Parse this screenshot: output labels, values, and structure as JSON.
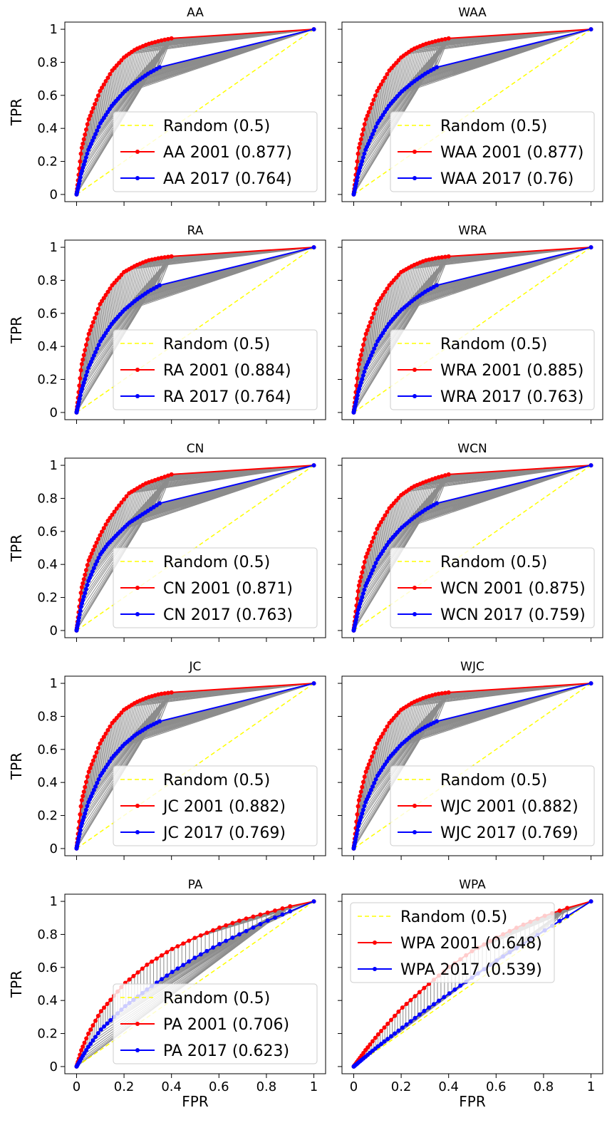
{
  "chart_data": [
    {
      "type": "line",
      "title": "AA",
      "xlabel": "",
      "ylabel": "TPR",
      "xlim": [
        0,
        1
      ],
      "ylim": [
        0,
        1
      ],
      "xticks": [
        "0",
        "0.2",
        "0.4",
        "0.6",
        "0.8",
        "1"
      ],
      "yticks": [
        "0",
        "0.2",
        "0.4",
        "0.6",
        "0.8",
        "1"
      ],
      "show_xticklabels": false,
      "legend_position": "lower right",
      "grid": false,
      "series": [
        {
          "name": "Random (0.5)",
          "auc": 0.5,
          "style": "dashed",
          "color": "#ffff00"
        },
        {
          "name": "AA 2001 (0.877)",
          "auc": 0.877,
          "color": "#ff0000",
          "x": [
            0,
            0.02,
            0.05,
            0.1,
            0.15,
            0.2,
            0.25,
            0.3,
            0.35,
            0.4,
            1
          ],
          "y": [
            0,
            0.27,
            0.45,
            0.63,
            0.75,
            0.83,
            0.88,
            0.91,
            0.93,
            0.945,
            1
          ]
        },
        {
          "name": "AA 2017 (0.764)",
          "auc": 0.764,
          "color": "#0000ff",
          "x": [
            0,
            0.02,
            0.05,
            0.1,
            0.15,
            0.2,
            0.25,
            0.3,
            0.35,
            1
          ],
          "y": [
            0,
            0.13,
            0.27,
            0.43,
            0.54,
            0.62,
            0.68,
            0.73,
            0.77,
            1
          ]
        }
      ]
    },
    {
      "type": "line",
      "title": "WAA",
      "xlabel": "",
      "ylabel": "",
      "xlim": [
        0,
        1
      ],
      "ylim": [
        0,
        1
      ],
      "xticks": [
        "0",
        "0.2",
        "0.4",
        "0.6",
        "0.8",
        "1"
      ],
      "yticks": [
        "0",
        "0.2",
        "0.4",
        "0.6",
        "0.8",
        "1"
      ],
      "show_xticklabels": false,
      "legend_position": "lower right",
      "grid": false,
      "series": [
        {
          "name": "Random (0.5)",
          "auc": 0.5,
          "style": "dashed",
          "color": "#ffff00"
        },
        {
          "name": "WAA 2001 (0.877)",
          "auc": 0.877,
          "color": "#ff0000",
          "x": [
            0,
            0.02,
            0.05,
            0.1,
            0.15,
            0.2,
            0.25,
            0.3,
            0.35,
            0.4,
            1
          ],
          "y": [
            0,
            0.27,
            0.45,
            0.63,
            0.75,
            0.83,
            0.88,
            0.91,
            0.93,
            0.945,
            1
          ]
        },
        {
          "name": "WAA 2017 (0.76)",
          "auc": 0.76,
          "color": "#0000ff",
          "x": [
            0,
            0.02,
            0.05,
            0.1,
            0.15,
            0.2,
            0.25,
            0.3,
            0.35,
            1
          ],
          "y": [
            0,
            0.13,
            0.27,
            0.43,
            0.54,
            0.62,
            0.68,
            0.73,
            0.77,
            1
          ]
        }
      ]
    },
    {
      "type": "line",
      "title": "RA",
      "xlabel": "",
      "ylabel": "TPR",
      "xlim": [
        0,
        1
      ],
      "ylim": [
        0,
        1
      ],
      "xticks": [
        "0",
        "0.2",
        "0.4",
        "0.6",
        "0.8",
        "1"
      ],
      "yticks": [
        "0",
        "0.2",
        "0.4",
        "0.6",
        "0.8",
        "1"
      ],
      "show_xticklabels": false,
      "legend_position": "lower right",
      "grid": false,
      "series": [
        {
          "name": "Random (0.5)",
          "auc": 0.5,
          "style": "dashed",
          "color": "#ffff00"
        },
        {
          "name": "RA 2001 (0.884)",
          "auc": 0.884,
          "color": "#ff0000",
          "x": [
            0,
            0.02,
            0.05,
            0.1,
            0.15,
            0.2,
            0.25,
            0.3,
            0.35,
            0.4,
            1
          ],
          "y": [
            0,
            0.28,
            0.47,
            0.66,
            0.77,
            0.85,
            0.89,
            0.92,
            0.935,
            0.945,
            1
          ]
        },
        {
          "name": "RA 2017 (0.764)",
          "auc": 0.764,
          "color": "#0000ff",
          "x": [
            0,
            0.02,
            0.05,
            0.1,
            0.15,
            0.2,
            0.25,
            0.3,
            0.35,
            1
          ],
          "y": [
            0,
            0.13,
            0.27,
            0.43,
            0.54,
            0.62,
            0.68,
            0.73,
            0.77,
            1
          ]
        }
      ]
    },
    {
      "type": "line",
      "title": "WRA",
      "xlabel": "",
      "ylabel": "",
      "xlim": [
        0,
        1
      ],
      "ylim": [
        0,
        1
      ],
      "xticks": [
        "0",
        "0.2",
        "0.4",
        "0.6",
        "0.8",
        "1"
      ],
      "yticks": [
        "0",
        "0.2",
        "0.4",
        "0.6",
        "0.8",
        "1"
      ],
      "show_xticklabels": false,
      "legend_position": "lower right",
      "grid": false,
      "series": [
        {
          "name": "Random (0.5)",
          "auc": 0.5,
          "style": "dashed",
          "color": "#ffff00"
        },
        {
          "name": "WRA 2001 (0.885)",
          "auc": 0.885,
          "color": "#ff0000",
          "x": [
            0,
            0.02,
            0.05,
            0.1,
            0.15,
            0.2,
            0.25,
            0.3,
            0.35,
            0.4,
            1
          ],
          "y": [
            0,
            0.28,
            0.47,
            0.66,
            0.77,
            0.85,
            0.89,
            0.92,
            0.935,
            0.945,
            1
          ]
        },
        {
          "name": "WRA 2017 (0.763)",
          "auc": 0.763,
          "color": "#0000ff",
          "x": [
            0,
            0.02,
            0.05,
            0.1,
            0.15,
            0.2,
            0.25,
            0.3,
            0.35,
            1
          ],
          "y": [
            0,
            0.13,
            0.27,
            0.43,
            0.54,
            0.62,
            0.68,
            0.73,
            0.77,
            1
          ]
        }
      ]
    },
    {
      "type": "line",
      "title": "CN",
      "xlabel": "",
      "ylabel": "TPR",
      "xlim": [
        0,
        1
      ],
      "ylim": [
        0,
        1
      ],
      "xticks": [
        "0",
        "0.2",
        "0.4",
        "0.6",
        "0.8",
        "1"
      ],
      "yticks": [
        "0",
        "0.2",
        "0.4",
        "0.6",
        "0.8",
        "1"
      ],
      "show_xticklabels": false,
      "legend_position": "lower right",
      "grid": false,
      "series": [
        {
          "name": "Random (0.5)",
          "auc": 0.5,
          "style": "dashed",
          "color": "#ffff00"
        },
        {
          "name": "CN 2001 (0.871)",
          "auc": 0.871,
          "color": "#ff0000",
          "x": [
            0,
            0.02,
            0.05,
            0.08,
            0.1,
            0.13,
            0.17,
            0.22,
            0.29,
            0.4,
            1
          ],
          "y": [
            0,
            0.25,
            0.42,
            0.52,
            0.58,
            0.66,
            0.74,
            0.83,
            0.89,
            0.945,
            1
          ]
        },
        {
          "name": "CN 2017 (0.763)",
          "auc": 0.763,
          "color": "#0000ff",
          "x": [
            0,
            0.02,
            0.05,
            0.08,
            0.1,
            0.13,
            0.17,
            0.22,
            0.35,
            1
          ],
          "y": [
            0,
            0.15,
            0.3,
            0.4,
            0.46,
            0.52,
            0.58,
            0.65,
            0.77,
            1
          ]
        }
      ]
    },
    {
      "type": "line",
      "title": "WCN",
      "xlabel": "",
      "ylabel": "",
      "xlim": [
        0,
        1
      ],
      "ylim": [
        0,
        1
      ],
      "xticks": [
        "0",
        "0.2",
        "0.4",
        "0.6",
        "0.8",
        "1"
      ],
      "yticks": [
        "0",
        "0.2",
        "0.4",
        "0.6",
        "0.8",
        "1"
      ],
      "show_xticklabels": false,
      "legend_position": "lower right",
      "grid": false,
      "series": [
        {
          "name": "Random (0.5)",
          "auc": 0.5,
          "style": "dashed",
          "color": "#ffff00"
        },
        {
          "name": "WCN 2001 (0.875)",
          "auc": 0.875,
          "color": "#ff0000",
          "x": [
            0,
            0.02,
            0.05,
            0.1,
            0.15,
            0.2,
            0.25,
            0.3,
            0.35,
            0.4,
            1
          ],
          "y": [
            0,
            0.26,
            0.44,
            0.62,
            0.74,
            0.82,
            0.87,
            0.9,
            0.925,
            0.945,
            1
          ]
        },
        {
          "name": "WCN 2017 (0.759)",
          "auc": 0.759,
          "color": "#0000ff",
          "x": [
            0,
            0.02,
            0.05,
            0.1,
            0.15,
            0.2,
            0.25,
            0.3,
            0.35,
            1
          ],
          "y": [
            0,
            0.13,
            0.27,
            0.43,
            0.54,
            0.62,
            0.68,
            0.73,
            0.77,
            1
          ]
        }
      ]
    },
    {
      "type": "line",
      "title": "JC",
      "xlabel": "",
      "ylabel": "TPR",
      "xlim": [
        0,
        1
      ],
      "ylim": [
        0,
        1
      ],
      "xticks": [
        "0",
        "0.2",
        "0.4",
        "0.6",
        "0.8",
        "1"
      ],
      "yticks": [
        "0",
        "0.2",
        "0.4",
        "0.6",
        "0.8",
        "1"
      ],
      "show_xticklabels": false,
      "legend_position": "lower right",
      "grid": false,
      "series": [
        {
          "name": "Random (0.5)",
          "auc": 0.5,
          "style": "dashed",
          "color": "#ffff00"
        },
        {
          "name": "JC 2001 (0.882)",
          "auc": 0.882,
          "color": "#ff0000",
          "x": [
            0,
            0.02,
            0.05,
            0.1,
            0.15,
            0.2,
            0.25,
            0.3,
            0.35,
            0.4,
            1
          ],
          "y": [
            0,
            0.28,
            0.46,
            0.64,
            0.76,
            0.84,
            0.885,
            0.915,
            0.935,
            0.945,
            1
          ]
        },
        {
          "name": "JC 2017 (0.769)",
          "auc": 0.769,
          "color": "#0000ff",
          "x": [
            0,
            0.02,
            0.05,
            0.1,
            0.15,
            0.2,
            0.25,
            0.3,
            0.35,
            1
          ],
          "y": [
            0,
            0.14,
            0.28,
            0.44,
            0.55,
            0.63,
            0.69,
            0.735,
            0.77,
            1
          ]
        }
      ]
    },
    {
      "type": "line",
      "title": "WJC",
      "xlabel": "",
      "ylabel": "",
      "xlim": [
        0,
        1
      ],
      "ylim": [
        0,
        1
      ],
      "xticks": [
        "0",
        "0.2",
        "0.4",
        "0.6",
        "0.8",
        "1"
      ],
      "yticks": [
        "0",
        "0.2",
        "0.4",
        "0.6",
        "0.8",
        "1"
      ],
      "show_xticklabels": false,
      "legend_position": "lower right",
      "grid": false,
      "series": [
        {
          "name": "Random (0.5)",
          "auc": 0.5,
          "style": "dashed",
          "color": "#ffff00"
        },
        {
          "name": "WJC 2001 (0.882)",
          "auc": 0.882,
          "color": "#ff0000",
          "x": [
            0,
            0.02,
            0.05,
            0.1,
            0.15,
            0.2,
            0.25,
            0.3,
            0.35,
            0.4,
            1
          ],
          "y": [
            0,
            0.28,
            0.46,
            0.64,
            0.76,
            0.84,
            0.885,
            0.915,
            0.935,
            0.945,
            1
          ]
        },
        {
          "name": "WJC 2017 (0.769)",
          "auc": 0.769,
          "color": "#0000ff",
          "x": [
            0,
            0.02,
            0.05,
            0.1,
            0.15,
            0.2,
            0.25,
            0.3,
            0.35,
            1
          ],
          "y": [
            0,
            0.14,
            0.28,
            0.44,
            0.55,
            0.63,
            0.69,
            0.735,
            0.77,
            1
          ]
        }
      ]
    },
    {
      "type": "line",
      "title": "PA",
      "xlabel": "FPR",
      "ylabel": "TPR",
      "xlim": [
        0,
        1
      ],
      "ylim": [
        0,
        1
      ],
      "xticks": [
        "0",
        "0.2",
        "0.4",
        "0.6",
        "0.8",
        "1"
      ],
      "yticks": [
        "0",
        "0.2",
        "0.4",
        "0.6",
        "0.8",
        "1"
      ],
      "show_xticklabels": true,
      "legend_position": "lower right",
      "grid": false,
      "series": [
        {
          "name": "Random (0.5)",
          "auc": 0.5,
          "style": "dashed",
          "color": "#ffff00"
        },
        {
          "name": "PA 2001 (0.706)",
          "auc": 0.706,
          "color": "#ff0000",
          "x": [
            0,
            0.02,
            0.05,
            0.1,
            0.2,
            0.3,
            0.4,
            0.5,
            0.6,
            0.7,
            0.8,
            0.9,
            1
          ],
          "y": [
            0,
            0.1,
            0.2,
            0.33,
            0.5,
            0.62,
            0.71,
            0.78,
            0.84,
            0.89,
            0.93,
            0.97,
            1
          ]
        },
        {
          "name": "PA 2017 (0.623)",
          "auc": 0.623,
          "color": "#0000ff",
          "x": [
            0,
            0.02,
            0.05,
            0.1,
            0.2,
            0.3,
            0.4,
            0.5,
            0.6,
            0.7,
            0.8,
            0.9,
            1
          ],
          "y": [
            0,
            0.05,
            0.12,
            0.22,
            0.36,
            0.47,
            0.57,
            0.66,
            0.74,
            0.81,
            0.88,
            0.94,
            1
          ]
        }
      ]
    },
    {
      "type": "line",
      "title": "WPA",
      "xlabel": "FPR",
      "ylabel": "",
      "xlim": [
        0,
        1
      ],
      "ylim": [
        0,
        1
      ],
      "xticks": [
        "0",
        "0.2",
        "0.4",
        "0.6",
        "0.8",
        "1"
      ],
      "yticks": [
        "0",
        "0.2",
        "0.4",
        "0.6",
        "0.8",
        "1"
      ],
      "show_xticklabels": true,
      "legend_position": "upper left",
      "grid": false,
      "series": [
        {
          "name": "Random (0.5)",
          "auc": 0.5,
          "style": "dashed",
          "color": "#ffff00"
        },
        {
          "name": "WPA 2001 (0.648)",
          "auc": 0.648,
          "color": "#ff0000",
          "x": [
            0,
            0.05,
            0.1,
            0.2,
            0.3,
            0.4,
            0.5,
            0.6,
            0.7,
            0.8,
            0.9,
            1
          ],
          "y": [
            0,
            0.1,
            0.19,
            0.35,
            0.48,
            0.6,
            0.7,
            0.78,
            0.85,
            0.91,
            0.96,
            1
          ]
        },
        {
          "name": "WPA 2017 (0.539)",
          "auc": 0.539,
          "color": "#0000ff",
          "x": [
            0,
            0.05,
            0.1,
            0.2,
            0.3,
            0.4,
            0.5,
            0.6,
            0.7,
            0.8,
            0.9,
            1
          ],
          "y": [
            0,
            0.06,
            0.12,
            0.23,
            0.34,
            0.44,
            0.54,
            0.64,
            0.73,
            0.82,
            0.91,
            1
          ]
        }
      ]
    }
  ]
}
